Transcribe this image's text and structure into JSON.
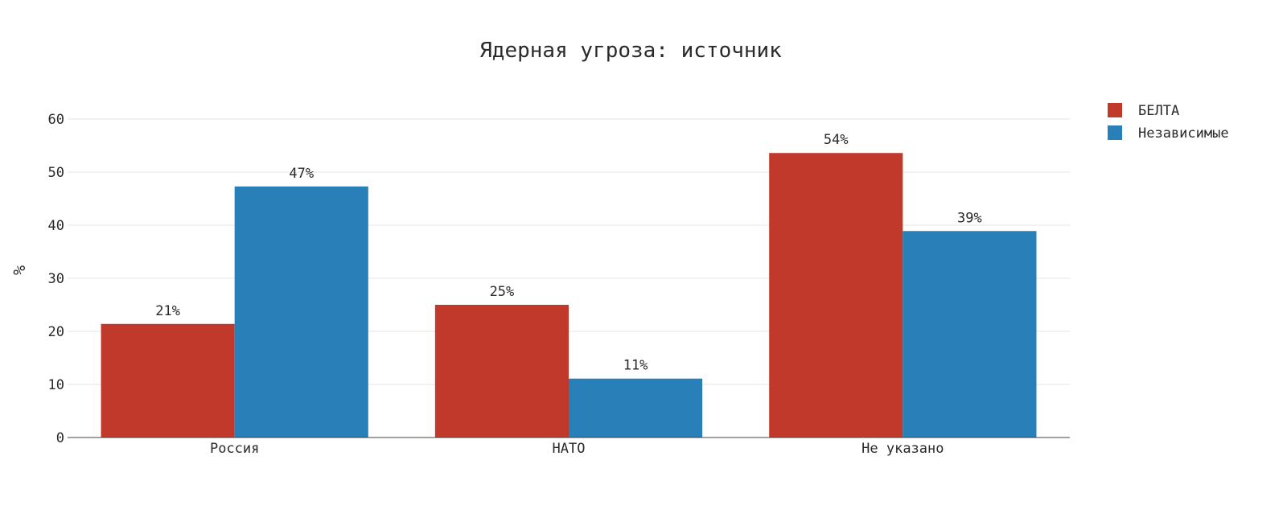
{
  "chart_data": {
    "type": "bar",
    "title": "Ядерная угроза: источник",
    "xlabel": "",
    "ylabel": "%",
    "categories": [
      "Россия",
      "НАТО",
      "Не указано"
    ],
    "series": [
      {
        "name": "БЕЛТА",
        "color": "#c0392b",
        "values": [
          21.4,
          25.0,
          53.6
        ],
        "labels": [
          "21%",
          "25%",
          "54%"
        ]
      },
      {
        "name": "Независимые",
        "color": "#2980b9",
        "values": [
          47.3,
          11.1,
          38.9
        ],
        "labels": [
          "47%",
          "11%",
          "39%"
        ]
      }
    ],
    "ylim": [
      0,
      60
    ],
    "yticks": [
      0,
      10,
      20,
      30,
      40,
      50,
      60
    ],
    "grid": true,
    "legend_position": "top-right"
  }
}
